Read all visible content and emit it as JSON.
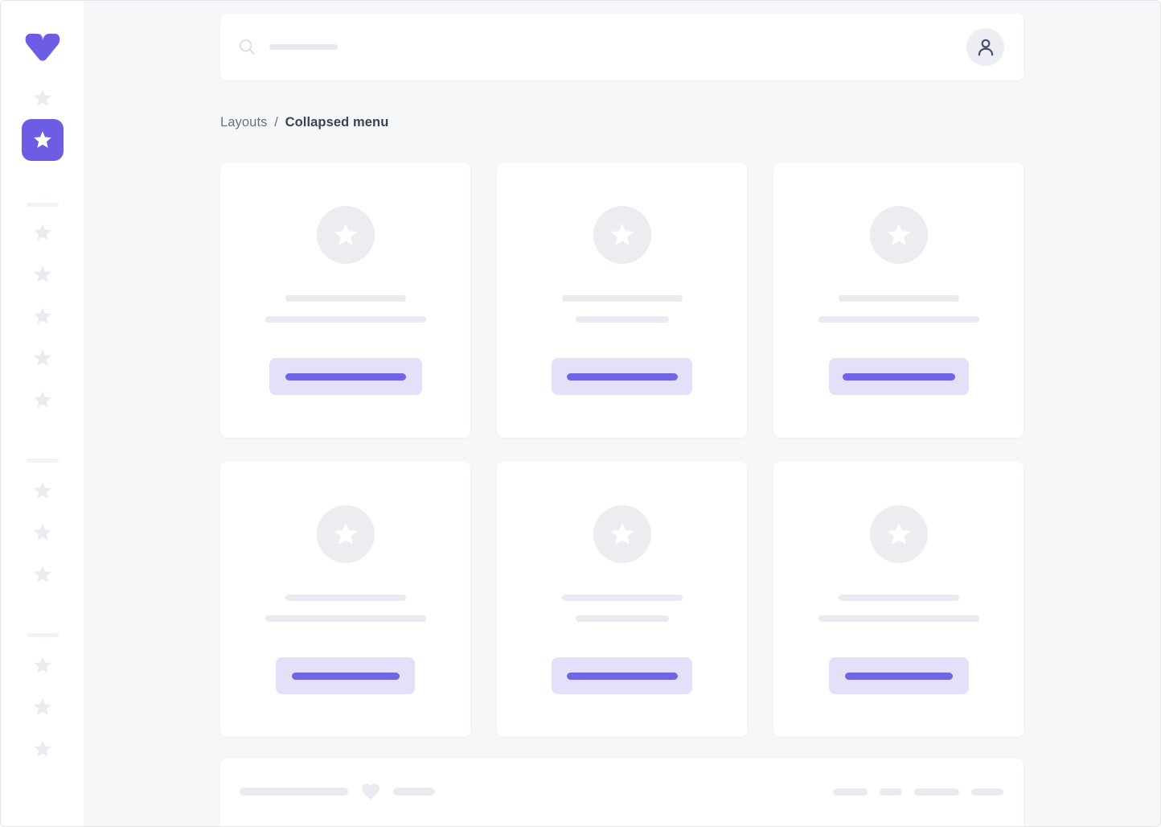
{
  "colors": {
    "accent": "#6C5DE4",
    "accent_bar": "#7265E3",
    "accent_light_bg": "#E4E0F9",
    "skeleton": "#E9EBF0",
    "placeholder_circle": "#ECEDF1",
    "content_bg": "#F6F7F9"
  },
  "topbar": {
    "search_icon": "search-icon",
    "search_skeleton_width": 85,
    "avatar_icon": "person-icon"
  },
  "breadcrumb": {
    "section": "Layouts",
    "separator": "/",
    "current": "Collapsed menu"
  },
  "sidebar": {
    "logo_icon": "v-logo",
    "top_items": [
      {
        "icon": "star-icon",
        "active": false
      },
      {
        "icon": "star-icon",
        "active": true
      }
    ],
    "groups": [
      {
        "icon": "star-icon",
        "count": 5
      },
      {
        "icon": "star-icon",
        "count": 3
      },
      {
        "icon": "star-icon",
        "count": 3
      }
    ]
  },
  "cards": [
    {
      "icon": "star-icon",
      "line1_w": 150,
      "line2_w": 200,
      "button_w": 190,
      "button_bar_w": 150
    },
    {
      "icon": "star-icon",
      "line1_w": 150,
      "line2_w": 116,
      "button_w": 175,
      "button_bar_w": 138
    },
    {
      "icon": "star-icon",
      "line1_w": 150,
      "line2_w": 200,
      "button_w": 174,
      "button_bar_w": 140
    },
    {
      "icon": "star-icon",
      "line1_w": 150,
      "line2_w": 200,
      "button_w": 173,
      "button_bar_w": 134
    },
    {
      "icon": "star-icon",
      "line1_w": 150,
      "line2_w": 116,
      "button_w": 175,
      "button_bar_w": 138
    },
    {
      "icon": "star-icon",
      "line1_w": 150,
      "line2_w": 200,
      "button_w": 174,
      "button_bar_w": 134
    }
  ],
  "footer": {
    "left_bars": [
      135,
      52
    ],
    "heart_icon": "heart-icon",
    "right_bars": [
      43,
      28,
      56,
      40
    ]
  }
}
